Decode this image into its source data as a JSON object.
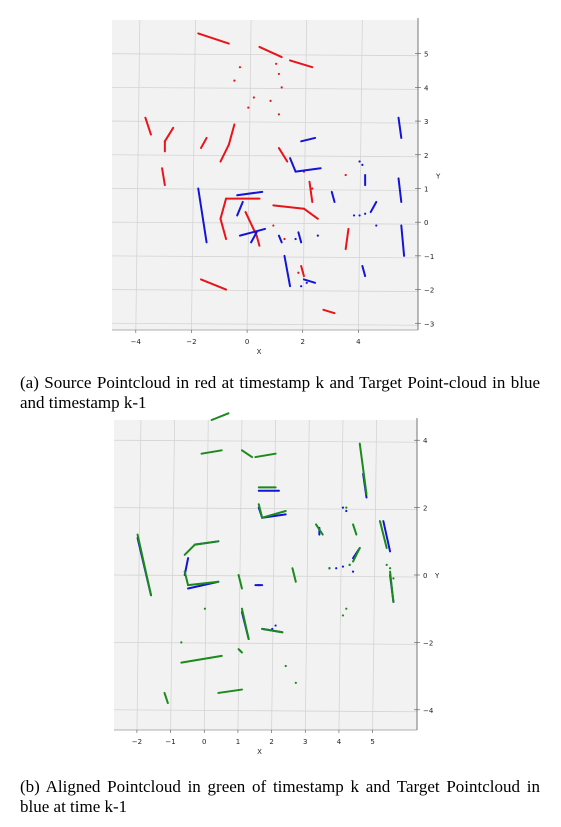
{
  "captions": {
    "a": "(a) Source Pointcloud in red at timestamp k and Target Point-cloud in blue and timestamp k-1",
    "b": "(b) Aligned Pointcloud in green of timestamp k and Target Pointcloud in blue at time k-1"
  },
  "colors": {
    "source": "#e8141a",
    "target": "#1414d8",
    "aligned": "#1a8a1a",
    "pane": "#f2f2f2",
    "grid": "#d4d4d4"
  },
  "chart_data": [
    {
      "type": "scatter",
      "panel": "a",
      "xlabel": "X",
      "ylabel": "Y",
      "xlim": [
        -5,
        6
      ],
      "ylim": [
        -3.2,
        6
      ],
      "xticks": [
        -4,
        -2,
        0,
        2,
        4
      ],
      "yticks": [
        5,
        4,
        3,
        2,
        1,
        0,
        -1,
        -2,
        -3
      ],
      "series": [
        {
          "color_key": "source",
          "segments": [
            [
              [
                -1.9,
                5.6
              ],
              [
                -0.8,
                5.3
              ]
            ],
            [
              [
                0.3,
                5.2
              ],
              [
                1.1,
                4.9
              ]
            ],
            [
              [
                1.4,
                4.8
              ],
              [
                2.2,
                4.6
              ]
            ],
            [
              [
                -3.8,
                3.1
              ],
              [
                -3.6,
                2.6
              ]
            ],
            [
              [
                -3.1,
                2.4
              ],
              [
                -2.8,
                2.8
              ]
            ],
            [
              [
                -3.1,
                2.4
              ],
              [
                -3.1,
                2.1
              ]
            ],
            [
              [
                -1.8,
                2.2
              ],
              [
                -1.6,
                2.5
              ]
            ],
            [
              [
                -1.1,
                1.8
              ],
              [
                -0.8,
                2.3
              ]
            ],
            [
              [
                -0.8,
                2.3
              ],
              [
                -0.6,
                2.9
              ]
            ],
            [
              [
                -3.2,
                1.6
              ],
              [
                -3.1,
                1.1
              ]
            ],
            [
              [
                -0.9,
                0.7
              ],
              [
                0.3,
                0.7
              ]
            ],
            [
              [
                -0.9,
                0.7
              ],
              [
                -1.1,
                0.1
              ]
            ],
            [
              [
                -1.1,
                0.1
              ],
              [
                -0.9,
                -0.5
              ]
            ],
            [
              [
                -0.2,
                0.3
              ],
              [
                0.2,
                -0.4
              ]
            ],
            [
              [
                0.2,
                -0.4
              ],
              [
                0.3,
                -0.7
              ]
            ],
            [
              [
                0.8,
                0.5
              ],
              [
                1.9,
                0.4
              ]
            ],
            [
              [
                1.9,
                0.4
              ],
              [
                2.4,
                0.1
              ]
            ],
            [
              [
                1.0,
                2.2
              ],
              [
                1.3,
                1.8
              ]
            ],
            [
              [
                2.1,
                1.2
              ],
              [
                2.2,
                0.6
              ]
            ],
            [
              [
                3.5,
                -0.2
              ],
              [
                3.4,
                -0.8
              ]
            ],
            [
              [
                -1.8,
                -1.7
              ],
              [
                -0.9,
                -2.0
              ]
            ],
            [
              [
                2.6,
                -2.6
              ],
              [
                3.0,
                -2.7
              ]
            ],
            [
              [
                1.8,
                -1.3
              ],
              [
                1.9,
                -1.6
              ]
            ]
          ],
          "dots": [
            [
              0.9,
              4.7
            ],
            [
              1.0,
              4.4
            ],
            [
              1.1,
              4.0
            ],
            [
              -0.4,
              4.6
            ],
            [
              -0.6,
              4.2
            ],
            [
              0.1,
              3.7
            ],
            [
              -0.1,
              3.4
            ],
            [
              0.7,
              3.6
            ],
            [
              1.0,
              3.2
            ],
            [
              1.9,
              1.5
            ],
            [
              2.2,
              1.0
            ],
            [
              0.8,
              -0.1
            ],
            [
              1.2,
              -0.5
            ],
            [
              1.7,
              -1.5
            ],
            [
              3.4,
              1.4
            ]
          ]
        },
        {
          "color_key": "target",
          "segments": [
            [
              [
                -1.9,
                1.0
              ],
              [
                -1.6,
                -0.6
              ]
            ],
            [
              [
                -0.5,
                0.8
              ],
              [
                0.4,
                0.9
              ]
            ],
            [
              [
                -0.3,
                0.6
              ],
              [
                -0.5,
                0.2
              ]
            ],
            [
              [
                -0.4,
                -0.4
              ],
              [
                0.5,
                -0.2
              ]
            ],
            [
              [
                0.2,
                -0.3
              ],
              [
                0.0,
                -0.6
              ]
            ],
            [
              [
                1.8,
                2.4
              ],
              [
                2.3,
                2.5
              ]
            ],
            [
              [
                1.4,
                1.9
              ],
              [
                1.6,
                1.5
              ]
            ],
            [
              [
                1.6,
                1.5
              ],
              [
                2.5,
                1.6
              ]
            ],
            [
              [
                5.3,
                3.1
              ],
              [
                5.4,
                2.5
              ]
            ],
            [
              [
                5.3,
                1.3
              ],
              [
                5.4,
                0.6
              ]
            ],
            [
              [
                4.3,
                0.3
              ],
              [
                4.5,
                0.6
              ]
            ],
            [
              [
                5.4,
                -0.1
              ],
              [
                5.5,
                -1.0
              ]
            ],
            [
              [
                4.1,
                1.4
              ],
              [
                4.1,
                1.1
              ]
            ],
            [
              [
                1.2,
                -1.0
              ],
              [
                1.4,
                -1.9
              ]
            ],
            [
              [
                1.9,
                -1.7
              ],
              [
                2.3,
                -1.8
              ]
            ],
            [
              [
                1.0,
                -0.4
              ],
              [
                1.1,
                -0.6
              ]
            ],
            [
              [
                1.7,
                -0.3
              ],
              [
                1.8,
                -0.6
              ]
            ],
            [
              [
                2.9,
                0.9
              ],
              [
                3.0,
                0.6
              ]
            ],
            [
              [
                4.0,
                -1.3
              ],
              [
                4.1,
                -1.6
              ]
            ]
          ],
          "dots": [
            [
              3.7,
              0.2
            ],
            [
              3.9,
              0.2
            ],
            [
              4.1,
              0.25
            ],
            [
              3.9,
              1.8
            ],
            [
              4.0,
              1.7
            ],
            [
              4.5,
              -0.1
            ],
            [
              1.6,
              -0.5
            ],
            [
              1.8,
              -1.9
            ],
            [
              2.0,
              -1.8
            ],
            [
              2.4,
              -0.4
            ]
          ]
        }
      ]
    },
    {
      "type": "scatter",
      "panel": "b",
      "xlabel": "X",
      "ylabel": "Y",
      "xlim": [
        -2.8,
        6.2
      ],
      "ylim": [
        -4.6,
        4.6
      ],
      "xticks": [
        -2,
        -1,
        0,
        1,
        2,
        3,
        4,
        5
      ],
      "yticks": [
        4,
        2,
        0,
        -2,
        -4
      ],
      "series": [
        {
          "color_key": "target",
          "segments": [
            [
              [
                -2.1,
                1.1
              ],
              [
                -1.7,
                -0.6
              ]
            ],
            [
              [
                1.5,
                2.5
              ],
              [
                2.1,
                2.5
              ]
            ],
            [
              [
                1.5,
                2.0
              ],
              [
                1.6,
                1.7
              ]
            ],
            [
              [
                1.6,
                1.7
              ],
              [
                2.3,
                1.8
              ]
            ],
            [
              [
                -0.4,
                0.9
              ],
              [
                0.3,
                1.0
              ]
            ],
            [
              [
                -0.6,
                0.5
              ],
              [
                -0.7,
                0.0
              ]
            ],
            [
              [
                -0.6,
                -0.4
              ],
              [
                0.3,
                -0.2
              ]
            ],
            [
              [
                1.0,
                -1.1
              ],
              [
                1.2,
                -1.9
              ]
            ],
            [
              [
                1.6,
                -1.6
              ],
              [
                2.2,
                -1.7
              ]
            ],
            [
              [
                1.4,
                -0.3
              ],
              [
                1.6,
                -0.3
              ]
            ],
            [
              [
                4.6,
                3.0
              ],
              [
                4.7,
                2.3
              ]
            ],
            [
              [
                3.3,
                1.4
              ],
              [
                3.3,
                1.2
              ]
            ],
            [
              [
                5.2,
                1.6
              ],
              [
                5.4,
                0.7
              ]
            ],
            [
              [
                4.3,
                0.5
              ],
              [
                4.5,
                0.8
              ]
            ],
            [
              [
                5.4,
                0.0
              ],
              [
                5.5,
                -0.8
              ]
            ]
          ],
          "dots": [
            [
              3.6,
              0.2
            ],
            [
              3.8,
              0.2
            ],
            [
              4.0,
              0.25
            ],
            [
              4.2,
              0.3
            ],
            [
              4.0,
              2.0
            ],
            [
              4.1,
              1.9
            ],
            [
              4.3,
              0.1
            ],
            [
              1.9,
              -1.6
            ],
            [
              2.0,
              -1.5
            ],
            [
              1.5,
              -0.3
            ]
          ]
        },
        {
          "color_key": "aligned",
          "segments": [
            [
              [
                0.1,
                4.6
              ],
              [
                0.6,
                4.8
              ]
            ],
            [
              [
                -0.2,
                3.6
              ],
              [
                0.4,
                3.7
              ]
            ],
            [
              [
                1.0,
                3.7
              ],
              [
                1.3,
                3.5
              ]
            ],
            [
              [
                1.4,
                3.5
              ],
              [
                2.0,
                3.6
              ]
            ],
            [
              [
                4.5,
                3.9
              ],
              [
                4.7,
                2.4
              ]
            ],
            [
              [
                1.5,
                2.6
              ],
              [
                2.0,
                2.6
              ]
            ],
            [
              [
                1.5,
                2.1
              ],
              [
                1.6,
                1.7
              ]
            ],
            [
              [
                1.6,
                1.7
              ],
              [
                2.3,
                1.9
              ]
            ],
            [
              [
                -0.7,
                0.6
              ],
              [
                -0.4,
                0.9
              ]
            ],
            [
              [
                -0.4,
                0.9
              ],
              [
                0.3,
                1.0
              ]
            ],
            [
              [
                -0.6,
                -0.3
              ],
              [
                0.3,
                -0.2
              ]
            ],
            [
              [
                -0.6,
                -0.3
              ],
              [
                -0.7,
                0.1
              ]
            ],
            [
              [
                -2.1,
                1.2
              ],
              [
                -1.7,
                -0.6
              ]
            ],
            [
              [
                1.0,
                -1.0
              ],
              [
                1.2,
                -1.9
              ]
            ],
            [
              [
                0.9,
                0.0
              ],
              [
                1.0,
                -0.4
              ]
            ],
            [
              [
                1.6,
                -1.6
              ],
              [
                2.2,
                -1.7
              ]
            ],
            [
              [
                3.2,
                1.5
              ],
              [
                3.4,
                1.2
              ]
            ],
            [
              [
                4.3,
                1.5
              ],
              [
                4.4,
                1.2
              ]
            ],
            [
              [
                5.1,
                1.6
              ],
              [
                5.3,
                0.8
              ]
            ],
            [
              [
                4.3,
                0.4
              ],
              [
                4.5,
                0.8
              ]
            ],
            [
              [
                5.4,
                0.1
              ],
              [
                5.5,
                -0.8
              ]
            ],
            [
              [
                2.5,
                0.2
              ],
              [
                2.6,
                -0.2
              ]
            ],
            [
              [
                -0.8,
                -2.6
              ],
              [
                0.4,
                -2.4
              ]
            ],
            [
              [
                -1.3,
                -3.5
              ],
              [
                -1.2,
                -3.8
              ]
            ],
            [
              [
                0.3,
                -3.5
              ],
              [
                1.0,
                -3.4
              ]
            ],
            [
              [
                0.9,
                -2.2
              ],
              [
                1.0,
                -2.3
              ]
            ]
          ],
          "dots": [
            [
              4.1,
              -1.0
            ],
            [
              4.0,
              -1.2
            ],
            [
              -0.1,
              -1.0
            ],
            [
              -0.8,
              -2.0
            ],
            [
              2.3,
              -2.7
            ],
            [
              2.6,
              -3.2
            ],
            [
              3.6,
              0.2
            ],
            [
              4.2,
              0.3
            ],
            [
              4.1,
              2.0
            ],
            [
              5.3,
              0.3
            ],
            [
              5.4,
              0.2
            ],
            [
              5.5,
              -0.1
            ]
          ]
        }
      ]
    }
  ]
}
